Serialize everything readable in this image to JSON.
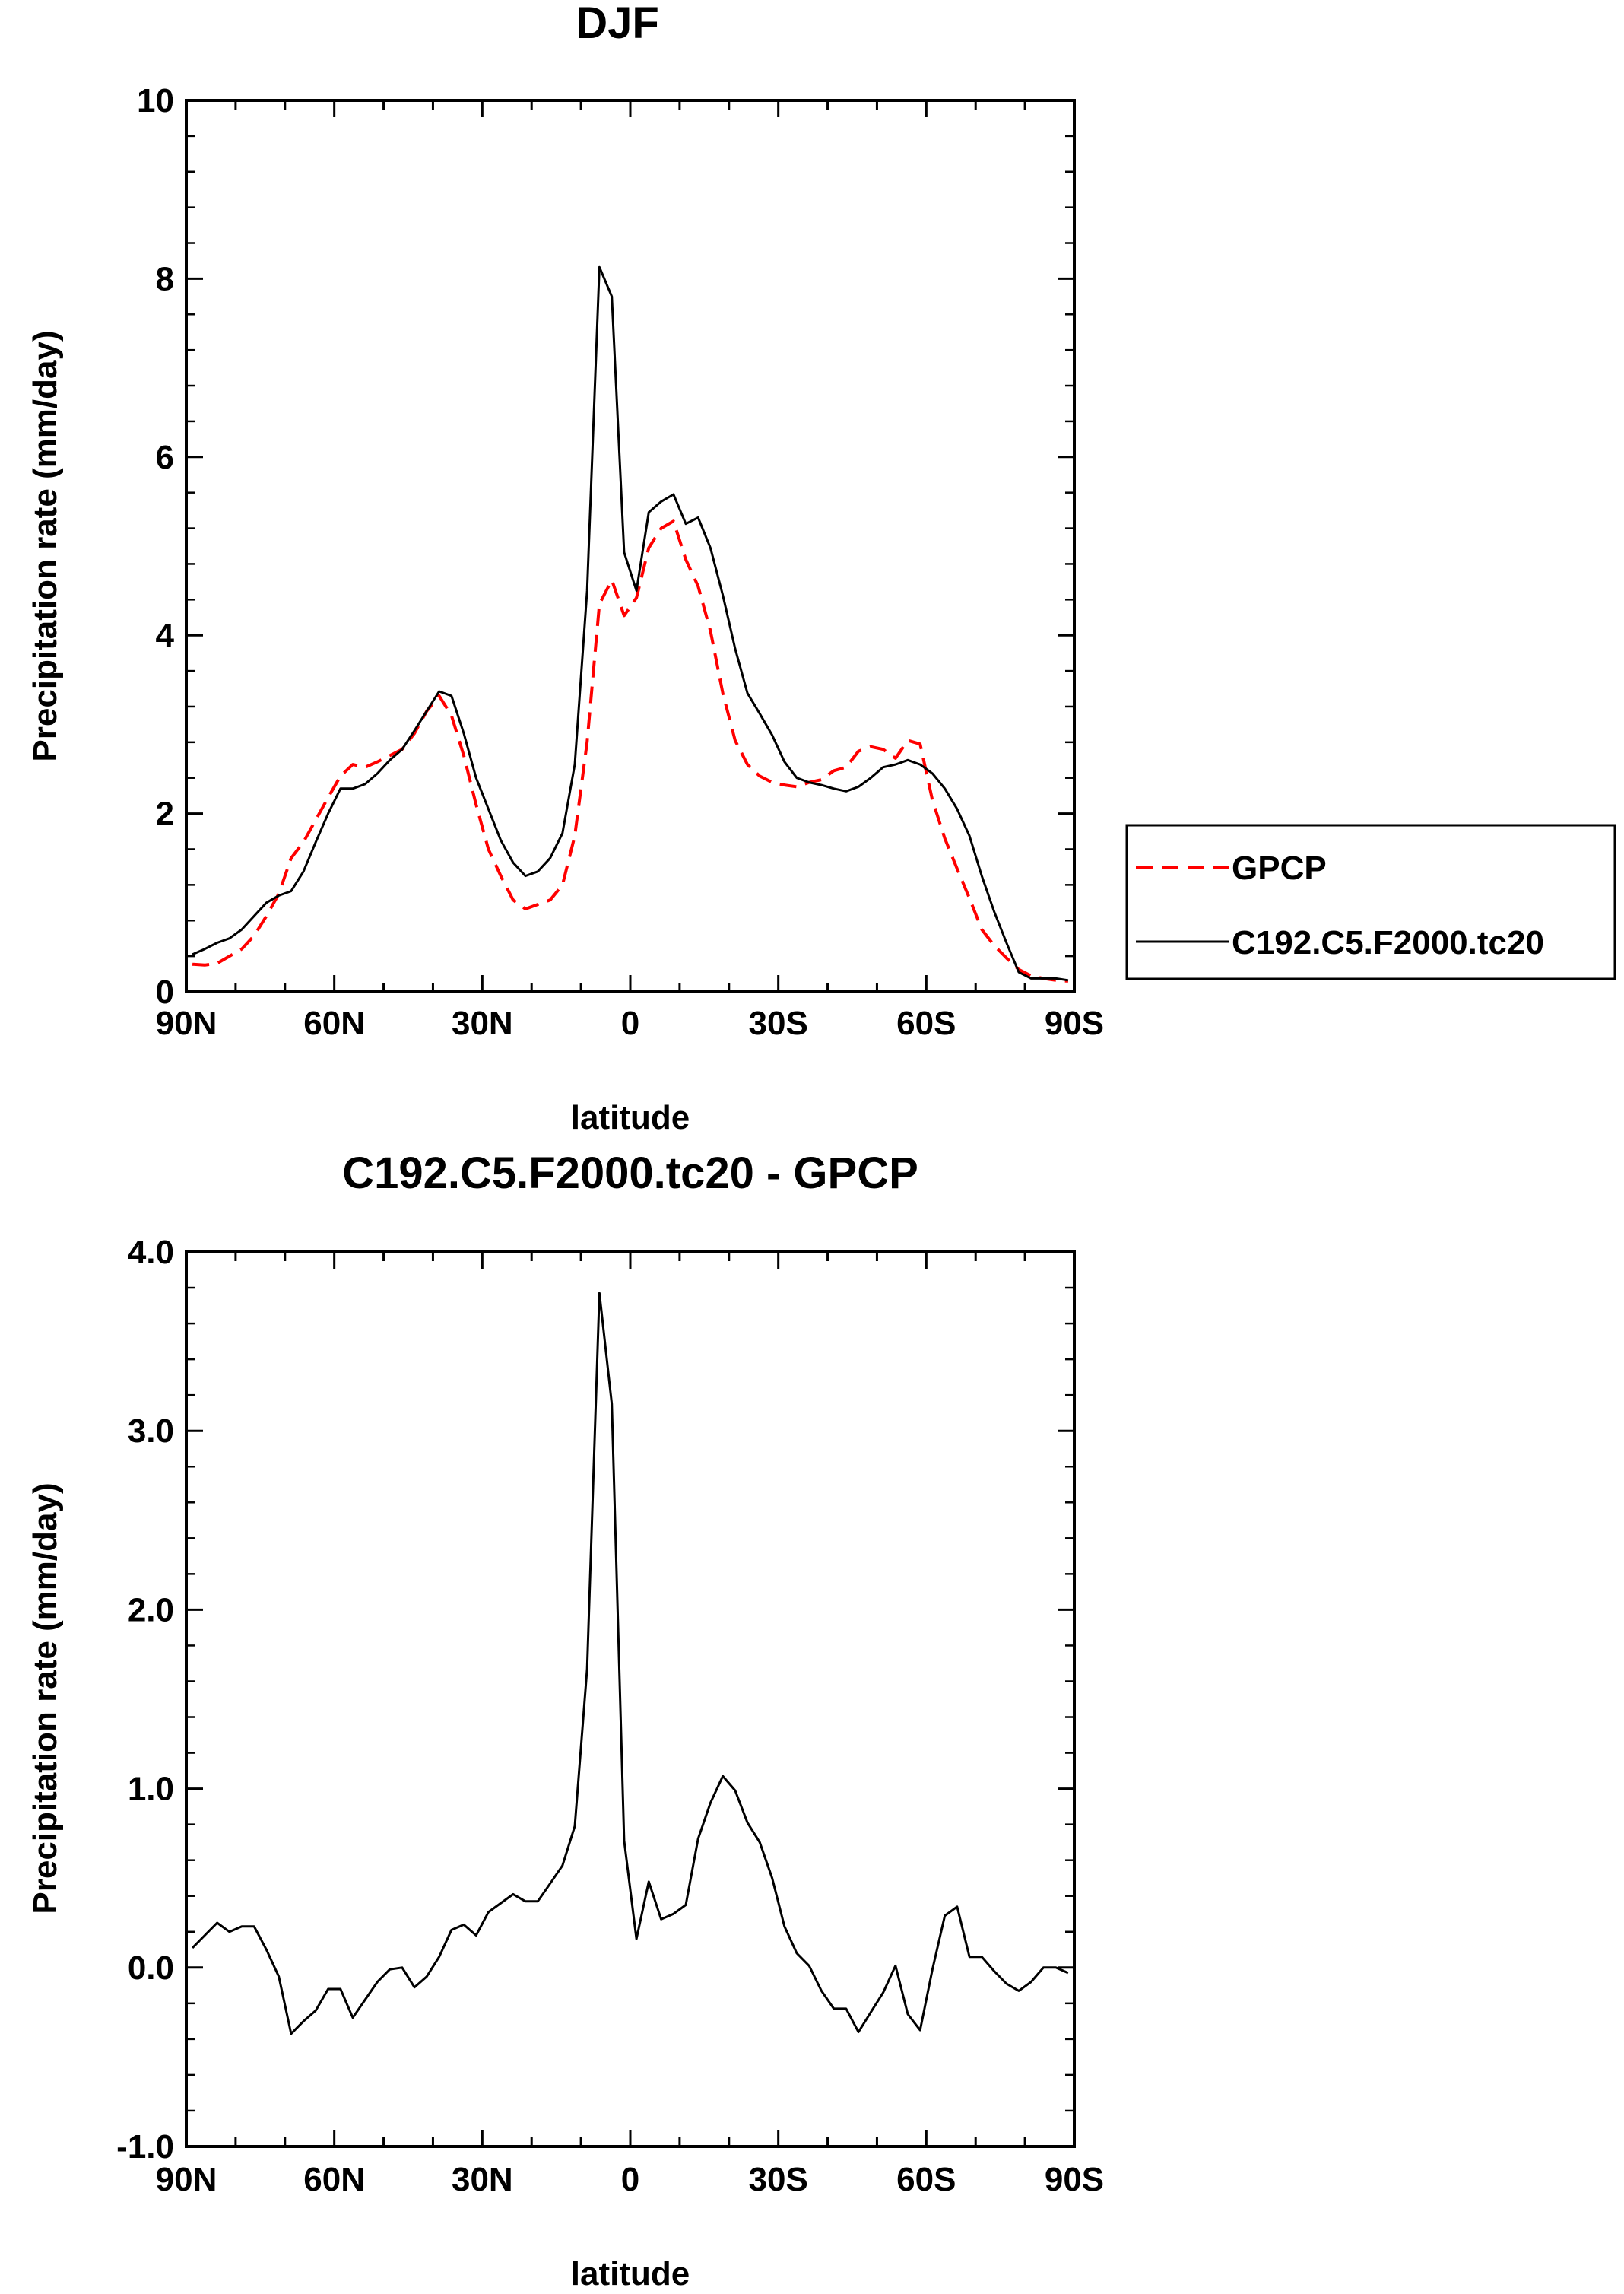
{
  "chart_data": [
    {
      "type": "line",
      "title": "DJF",
      "xlabel": "latitude",
      "ylabel": "Precipitation rate (mm/day)",
      "xlim": [
        90,
        -90
      ],
      "ylim": [
        0,
        10
      ],
      "x_ticks": [
        90,
        60,
        30,
        0,
        -30,
        -60,
        -90
      ],
      "x_tick_labels": [
        "90N",
        "60N",
        "30N",
        "0",
        "30S",
        "60S",
        "90S"
      ],
      "y_ticks": [
        0,
        2,
        4,
        6,
        8,
        10
      ],
      "y_tick_labels": [
        "0",
        "2",
        "4",
        "6",
        "8",
        "10"
      ],
      "grid": false,
      "legend_position": "right",
      "series": [
        {
          "name": "GPCP",
          "color": "#ff0000",
          "style": "dashed",
          "x": [
            88.75,
            86.25,
            83.75,
            81.25,
            78.75,
            76.25,
            73.75,
            71.25,
            68.75,
            66.25,
            63.75,
            61.25,
            58.75,
            56.25,
            53.75,
            51.25,
            48.75,
            46.25,
            43.75,
            41.25,
            38.75,
            36.25,
            33.75,
            31.25,
            28.75,
            26.25,
            23.75,
            21.25,
            18.75,
            16.25,
            13.75,
            11.25,
            8.75,
            6.25,
            3.75,
            1.25,
            -1.25,
            -3.75,
            -6.25,
            -8.75,
            -11.25,
            -13.75,
            -16.25,
            -18.75,
            -21.25,
            -23.75,
            -26.25,
            -28.75,
            -31.25,
            -33.75,
            -36.25,
            -38.75,
            -41.25,
            -43.75,
            -46.25,
            -48.75,
            -51.25,
            -53.75,
            -56.25,
            -58.75,
            -61.25,
            -63.75,
            -66.25,
            -68.75,
            -71.25,
            -73.75,
            -76.25,
            -78.75,
            -81.25,
            -83.75,
            -86.25,
            -88.75
          ],
          "values": [
            0.31,
            0.3,
            0.32,
            0.4,
            0.48,
            0.63,
            0.85,
            1.1,
            1.5,
            1.68,
            1.93,
            2.18,
            2.42,
            2.55,
            2.52,
            2.58,
            2.65,
            2.72,
            2.9,
            3.15,
            3.32,
            3.1,
            2.65,
            2.1,
            1.6,
            1.3,
            1.03,
            0.93,
            0.98,
            1.03,
            1.2,
            1.75,
            2.8,
            4.35,
            4.62,
            4.22,
            4.42,
            4.98,
            5.2,
            5.28,
            4.85,
            4.55,
            4.05,
            3.35,
            2.82,
            2.55,
            2.42,
            2.35,
            2.32,
            2.3,
            2.35,
            2.38,
            2.48,
            2.52,
            2.7,
            2.75,
            2.72,
            2.62,
            2.82,
            2.78,
            2.15,
            1.72,
            1.38,
            1.05,
            0.7,
            0.52,
            0.38,
            0.25,
            0.18,
            0.15,
            0.13,
            0.12
          ]
        },
        {
          "name": "C192.C5.F2000.tc20",
          "color": "#000000",
          "style": "solid",
          "x": [
            88.75,
            86.25,
            83.75,
            81.25,
            78.75,
            76.25,
            73.75,
            71.25,
            68.75,
            66.25,
            63.75,
            61.25,
            58.75,
            56.25,
            53.75,
            51.25,
            48.75,
            46.25,
            43.75,
            41.25,
            38.75,
            36.25,
            33.75,
            31.25,
            28.75,
            26.25,
            23.75,
            21.25,
            18.75,
            16.25,
            13.75,
            11.25,
            8.75,
            6.25,
            3.75,
            1.25,
            -1.25,
            -3.75,
            -6.25,
            -8.75,
            -11.25,
            -13.75,
            -16.25,
            -18.75,
            -21.25,
            -23.75,
            -26.25,
            -28.75,
            -31.25,
            -33.75,
            -36.25,
            -38.75,
            -41.25,
            -43.75,
            -46.25,
            -48.75,
            -51.25,
            -53.75,
            -56.25,
            -58.75,
            -61.25,
            -63.75,
            -66.25,
            -68.75,
            -71.25,
            -73.75,
            -76.25,
            -78.75,
            -81.25,
            -83.75,
            -86.25,
            -88.75
          ],
          "values": [
            0.42,
            0.48,
            0.55,
            0.6,
            0.7,
            0.85,
            1.0,
            1.08,
            1.13,
            1.35,
            1.68,
            2.0,
            2.28,
            2.28,
            2.33,
            2.45,
            2.6,
            2.72,
            2.93,
            3.15,
            3.37,
            3.32,
            2.9,
            2.4,
            2.05,
            1.7,
            1.45,
            1.3,
            1.35,
            1.5,
            1.78,
            2.55,
            4.5,
            8.13,
            7.8,
            4.93,
            4.5,
            5.38,
            5.5,
            5.58,
            5.25,
            5.32,
            4.98,
            4.45,
            3.85,
            3.35,
            3.12,
            2.88,
            2.58,
            2.4,
            2.35,
            2.32,
            2.28,
            2.25,
            2.3,
            2.4,
            2.52,
            2.55,
            2.6,
            2.55,
            2.45,
            2.28,
            2.05,
            1.75,
            1.3,
            0.9,
            0.55,
            0.22,
            0.15,
            0.15,
            0.15,
            0.13
          ]
        }
      ]
    },
    {
      "type": "line",
      "title": "C192.C5.F2000.tc20 - GPCP",
      "xlabel": "latitude",
      "ylabel": "Precipitation rate (mm/day)",
      "xlim": [
        90,
        -90
      ],
      "ylim": [
        -1.0,
        4.0
      ],
      "x_ticks": [
        90,
        60,
        30,
        0,
        -30,
        -60,
        -90
      ],
      "x_tick_labels": [
        "90N",
        "60N",
        "30N",
        "0",
        "30S",
        "60S",
        "90S"
      ],
      "y_ticks": [
        -1,
        0,
        1,
        2,
        3,
        4
      ],
      "y_tick_labels": [
        "-1.0",
        "0.0",
        "1.0",
        "2.0",
        "3.0",
        "4.0"
      ],
      "grid": false,
      "series": [
        {
          "name": "C192.C5.F2000.tc20 - GPCP",
          "color": "#000000",
          "style": "solid",
          "x": [
            88.75,
            86.25,
            83.75,
            81.25,
            78.75,
            76.25,
            73.75,
            71.25,
            68.75,
            66.25,
            63.75,
            61.25,
            58.75,
            56.25,
            53.75,
            51.25,
            48.75,
            46.25,
            43.75,
            41.25,
            38.75,
            36.25,
            33.75,
            31.25,
            28.75,
            26.25,
            23.75,
            21.25,
            18.75,
            16.25,
            13.75,
            11.25,
            8.75,
            6.25,
            3.75,
            1.25,
            -1.25,
            -3.75,
            -6.25,
            -8.75,
            -11.25,
            -13.75,
            -16.25,
            -18.75,
            -21.25,
            -23.75,
            -26.25,
            -28.75,
            -31.25,
            -33.75,
            -36.25,
            -38.75,
            -41.25,
            -43.75,
            -46.25,
            -48.75,
            -51.25,
            -53.75,
            -56.25,
            -58.75,
            -61.25,
            -63.75,
            -66.25,
            -68.75,
            -71.25,
            -73.75,
            -76.25,
            -78.75,
            -81.25,
            -83.75,
            -86.25,
            -88.75
          ],
          "values": [
            0.11,
            0.18,
            0.25,
            0.2,
            0.23,
            0.23,
            0.1,
            -0.05,
            -0.37,
            -0.3,
            -0.24,
            -0.12,
            -0.12,
            -0.28,
            -0.18,
            -0.08,
            -0.01,
            0.0,
            -0.11,
            -0.05,
            0.06,
            0.21,
            0.24,
            0.18,
            0.31,
            0.36,
            0.41,
            0.37,
            0.37,
            0.47,
            0.57,
            0.79,
            1.67,
            3.77,
            3.15,
            0.71,
            0.16,
            0.48,
            0.27,
            0.3,
            0.35,
            0.72,
            0.92,
            1.07,
            0.99,
            0.81,
            0.7,
            0.5,
            0.23,
            0.08,
            0.01,
            -0.13,
            -0.23,
            -0.23,
            -0.36,
            -0.25,
            -0.14,
            0.01,
            -0.26,
            -0.35,
            -0.01,
            0.29,
            0.34,
            0.06,
            0.06,
            -0.02,
            -0.09,
            -0.13,
            -0.08,
            0.0,
            0.0,
            -0.03
          ]
        }
      ]
    }
  ]
}
